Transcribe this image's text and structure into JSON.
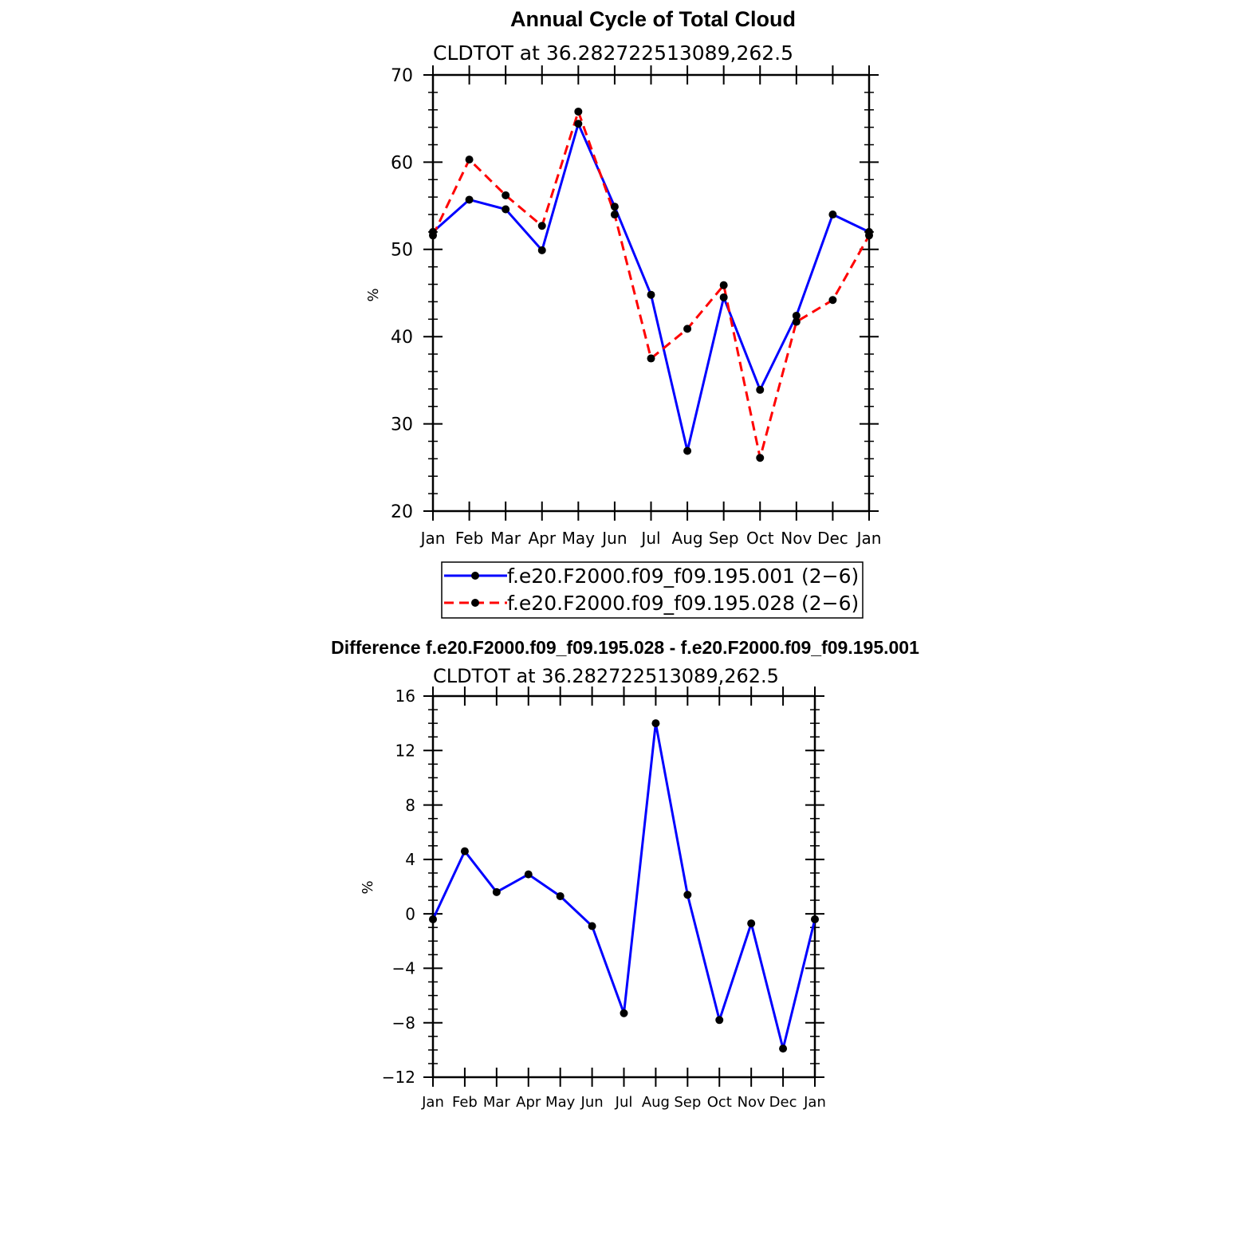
{
  "chart_data": [
    {
      "type": "line",
      "title": "Annual Cycle of Total Cloud",
      "subtitle": "CLDTOT at 36.282722513089,262.5",
      "xlabel": "",
      "ylabel": "%",
      "categories": [
        "Jan",
        "Feb",
        "Mar",
        "Apr",
        "May",
        "Jun",
        "Jul",
        "Aug",
        "Sep",
        "Oct",
        "Nov",
        "Dec",
        "Jan"
      ],
      "ylim": [
        20,
        70
      ],
      "yticks": [
        "20",
        "30",
        "40",
        "50",
        "60",
        "70"
      ],
      "legend_position": "bottom",
      "series": [
        {
          "name": "f.e20.F2000.f09_f09.195.001 (2−6)",
          "color": "#0000ff",
          "dash": "solid",
          "values": [
            52.0,
            55.7,
            54.6,
            49.9,
            64.4,
            54.9,
            44.8,
            26.9,
            44.5,
            33.9,
            42.4,
            54.0,
            52.0
          ]
        },
        {
          "name": "f.e20.F2000.f09_f09.195.028 (2−6)",
          "color": "#ff0000",
          "dash": "dashed",
          "values": [
            51.6,
            60.3,
            56.2,
            52.7,
            65.8,
            54.0,
            37.5,
            40.9,
            45.9,
            26.1,
            41.7,
            44.2,
            51.6
          ]
        }
      ]
    },
    {
      "type": "line",
      "title": "Difference f.e20.F2000.f09_f09.195.028 - f.e20.F2000.f09_f09.195.001",
      "subtitle": "CLDTOT at 36.282722513089,262.5",
      "xlabel": "",
      "ylabel": "%",
      "categories": [
        "Jan",
        "Feb",
        "Mar",
        "Apr",
        "May",
        "Jun",
        "Jul",
        "Aug",
        "Sep",
        "Oct",
        "Nov",
        "Dec",
        "Jan"
      ],
      "ylim": [
        -12,
        16
      ],
      "yticks": [
        "−12",
        "−8",
        "−4",
        "0",
        "4",
        "8",
        "12",
        "16"
      ],
      "series": [
        {
          "color": "#0000ff",
          "dash": "solid",
          "values": [
            -0.4,
            4.6,
            1.6,
            2.9,
            1.3,
            -0.9,
            -7.3,
            14.0,
            1.4,
            -7.8,
            -0.7,
            -9.9,
            -0.4
          ]
        }
      ]
    }
  ]
}
